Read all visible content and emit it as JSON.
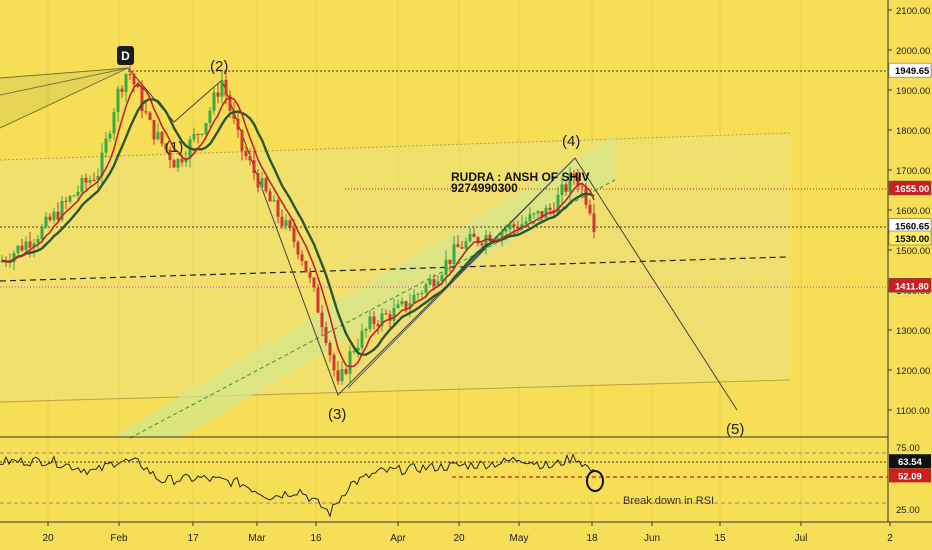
{
  "chart_data": {
    "type": "candlestick",
    "title": "",
    "price_axis": {
      "ticks": [
        1100,
        1200,
        1300,
        1400,
        1500,
        1600,
        1700,
        1800,
        1900,
        2000,
        2100
      ],
      "tick_labels": [
        "1100.00",
        "1200.00",
        "1300.00",
        "1400.00",
        "1500.00",
        "1600.00",
        "1700.00",
        "1800.00",
        "1900.00",
        "2000.00",
        "2100.00"
      ],
      "range": [
        1030,
        2160
      ]
    },
    "rsi_axis": {
      "ticks": [
        25,
        75
      ],
      "tick_labels": [
        "25.00",
        "75.00"
      ],
      "range": [
        15,
        80
      ]
    },
    "time_axis": {
      "labels": [
        "20",
        "Feb",
        "17",
        "Mar",
        "16",
        "Apr",
        "20",
        "May",
        "18",
        "Jun",
        "15",
        "Jul",
        "2"
      ]
    },
    "price_badges": [
      {
        "value": 1949.65,
        "label": "1949.65",
        "bg": "#ffffff",
        "fg": "#000000"
      },
      {
        "value": 1655.0,
        "label": "1655.00",
        "bg": "#cc1f1f",
        "fg": "#ffffff"
      },
      {
        "value": 1560.65,
        "label": "1560.65",
        "bg": "#ffffff",
        "fg": "#000000"
      },
      {
        "value": 1530.0,
        "label": "1530.00",
        "bg": "#ffef66",
        "fg": "#000000"
      },
      {
        "value": 1411.8,
        "label": "1411.80",
        "bg": "#cc1f1f",
        "fg": "#ffffff"
      }
    ],
    "rsi_badges": [
      {
        "value": 63.54,
        "label": "63.54",
        "bg": "#111111",
        "fg": "#ffffff"
      },
      {
        "value": 52.09,
        "label": "52.09",
        "bg": "#cc1f1f",
        "fg": "#ffffff"
      }
    ],
    "wave_labels": [
      "(1)",
      "(2)",
      "(3)",
      "(4)",
      "(5)",
      "D"
    ],
    "annotations": {
      "author": "RUDRA : ANSH OF SHIV",
      "phone": "9274990300",
      "rsi_note": "Break down in RSI"
    },
    "colors": {
      "background": "#f6df57",
      "candle_up": "#3aa845",
      "candle_down": "#d0392f",
      "ma_fast": "#c1232a",
      "ma_slow": "#2e5530",
      "channel_fill": "#dde489",
      "highlight_red": "#cc1f1f"
    }
  }
}
